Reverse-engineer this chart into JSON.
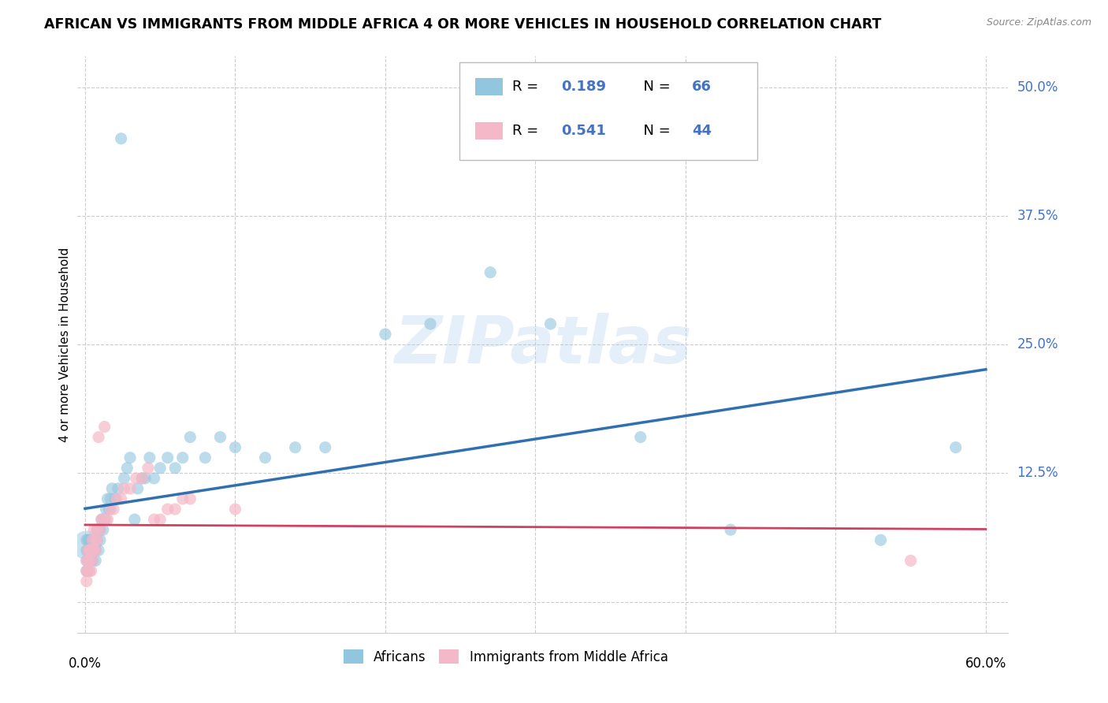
{
  "title": "AFRICAN VS IMMIGRANTS FROM MIDDLE AFRICA 4 OR MORE VEHICLES IN HOUSEHOLD CORRELATION CHART",
  "source": "Source: ZipAtlas.com",
  "ylabel": "4 or more Vehicles in Household",
  "blue_color": "#92c5de",
  "pink_color": "#f4b8c8",
  "blue_line_color": "#3070b0",
  "pink_line_color": "#d04060",
  "watermark": "ZIPatlas",
  "legend_blue_r": "0.189",
  "legend_blue_n": "66",
  "legend_pink_r": "0.541",
  "legend_pink_n": "44",
  "xmin": 0.0,
  "xmax": 0.6,
  "ymin": -0.03,
  "ymax": 0.53,
  "africans_x": [
    0.001,
    0.001,
    0.001,
    0.001,
    0.002,
    0.002,
    0.002,
    0.002,
    0.003,
    0.003,
    0.003,
    0.004,
    0.004,
    0.004,
    0.005,
    0.005,
    0.005,
    0.006,
    0.006,
    0.007,
    0.007,
    0.008,
    0.008,
    0.009,
    0.009,
    0.01,
    0.01,
    0.011,
    0.012,
    0.013,
    0.014,
    0.015,
    0.016,
    0.017,
    0.018,
    0.02,
    0.022,
    0.024,
    0.026,
    0.028,
    0.03,
    0.033,
    0.035,
    0.038,
    0.04,
    0.043,
    0.046,
    0.05,
    0.055,
    0.06,
    0.065,
    0.07,
    0.08,
    0.09,
    0.1,
    0.12,
    0.14,
    0.16,
    0.2,
    0.23,
    0.27,
    0.31,
    0.37,
    0.43,
    0.53,
    0.58
  ],
  "africans_y": [
    0.03,
    0.04,
    0.05,
    0.06,
    0.03,
    0.04,
    0.05,
    0.06,
    0.04,
    0.05,
    0.06,
    0.04,
    0.05,
    0.06,
    0.04,
    0.05,
    0.06,
    0.05,
    0.06,
    0.04,
    0.05,
    0.06,
    0.07,
    0.05,
    0.07,
    0.06,
    0.07,
    0.08,
    0.07,
    0.08,
    0.09,
    0.1,
    0.09,
    0.1,
    0.11,
    0.1,
    0.11,
    0.45,
    0.12,
    0.13,
    0.14,
    0.08,
    0.11,
    0.12,
    0.12,
    0.14,
    0.12,
    0.13,
    0.14,
    0.13,
    0.14,
    0.16,
    0.14,
    0.16,
    0.15,
    0.14,
    0.15,
    0.15,
    0.26,
    0.27,
    0.32,
    0.27,
    0.16,
    0.07,
    0.06,
    0.15
  ],
  "immigrants_x": [
    0.001,
    0.001,
    0.001,
    0.002,
    0.002,
    0.002,
    0.003,
    0.003,
    0.003,
    0.004,
    0.004,
    0.005,
    0.005,
    0.005,
    0.006,
    0.006,
    0.007,
    0.007,
    0.008,
    0.008,
    0.009,
    0.01,
    0.011,
    0.012,
    0.013,
    0.014,
    0.015,
    0.017,
    0.019,
    0.021,
    0.024,
    0.026,
    0.03,
    0.034,
    0.038,
    0.042,
    0.046,
    0.05,
    0.055,
    0.06,
    0.065,
    0.07,
    0.1,
    0.55
  ],
  "immigrants_y": [
    0.02,
    0.03,
    0.04,
    0.03,
    0.04,
    0.05,
    0.03,
    0.04,
    0.05,
    0.03,
    0.05,
    0.04,
    0.05,
    0.06,
    0.05,
    0.07,
    0.05,
    0.06,
    0.06,
    0.07,
    0.16,
    0.07,
    0.08,
    0.08,
    0.17,
    0.08,
    0.08,
    0.09,
    0.09,
    0.1,
    0.1,
    0.11,
    0.11,
    0.12,
    0.12,
    0.13,
    0.08,
    0.08,
    0.09,
    0.09,
    0.1,
    0.1,
    0.09,
    0.04
  ]
}
